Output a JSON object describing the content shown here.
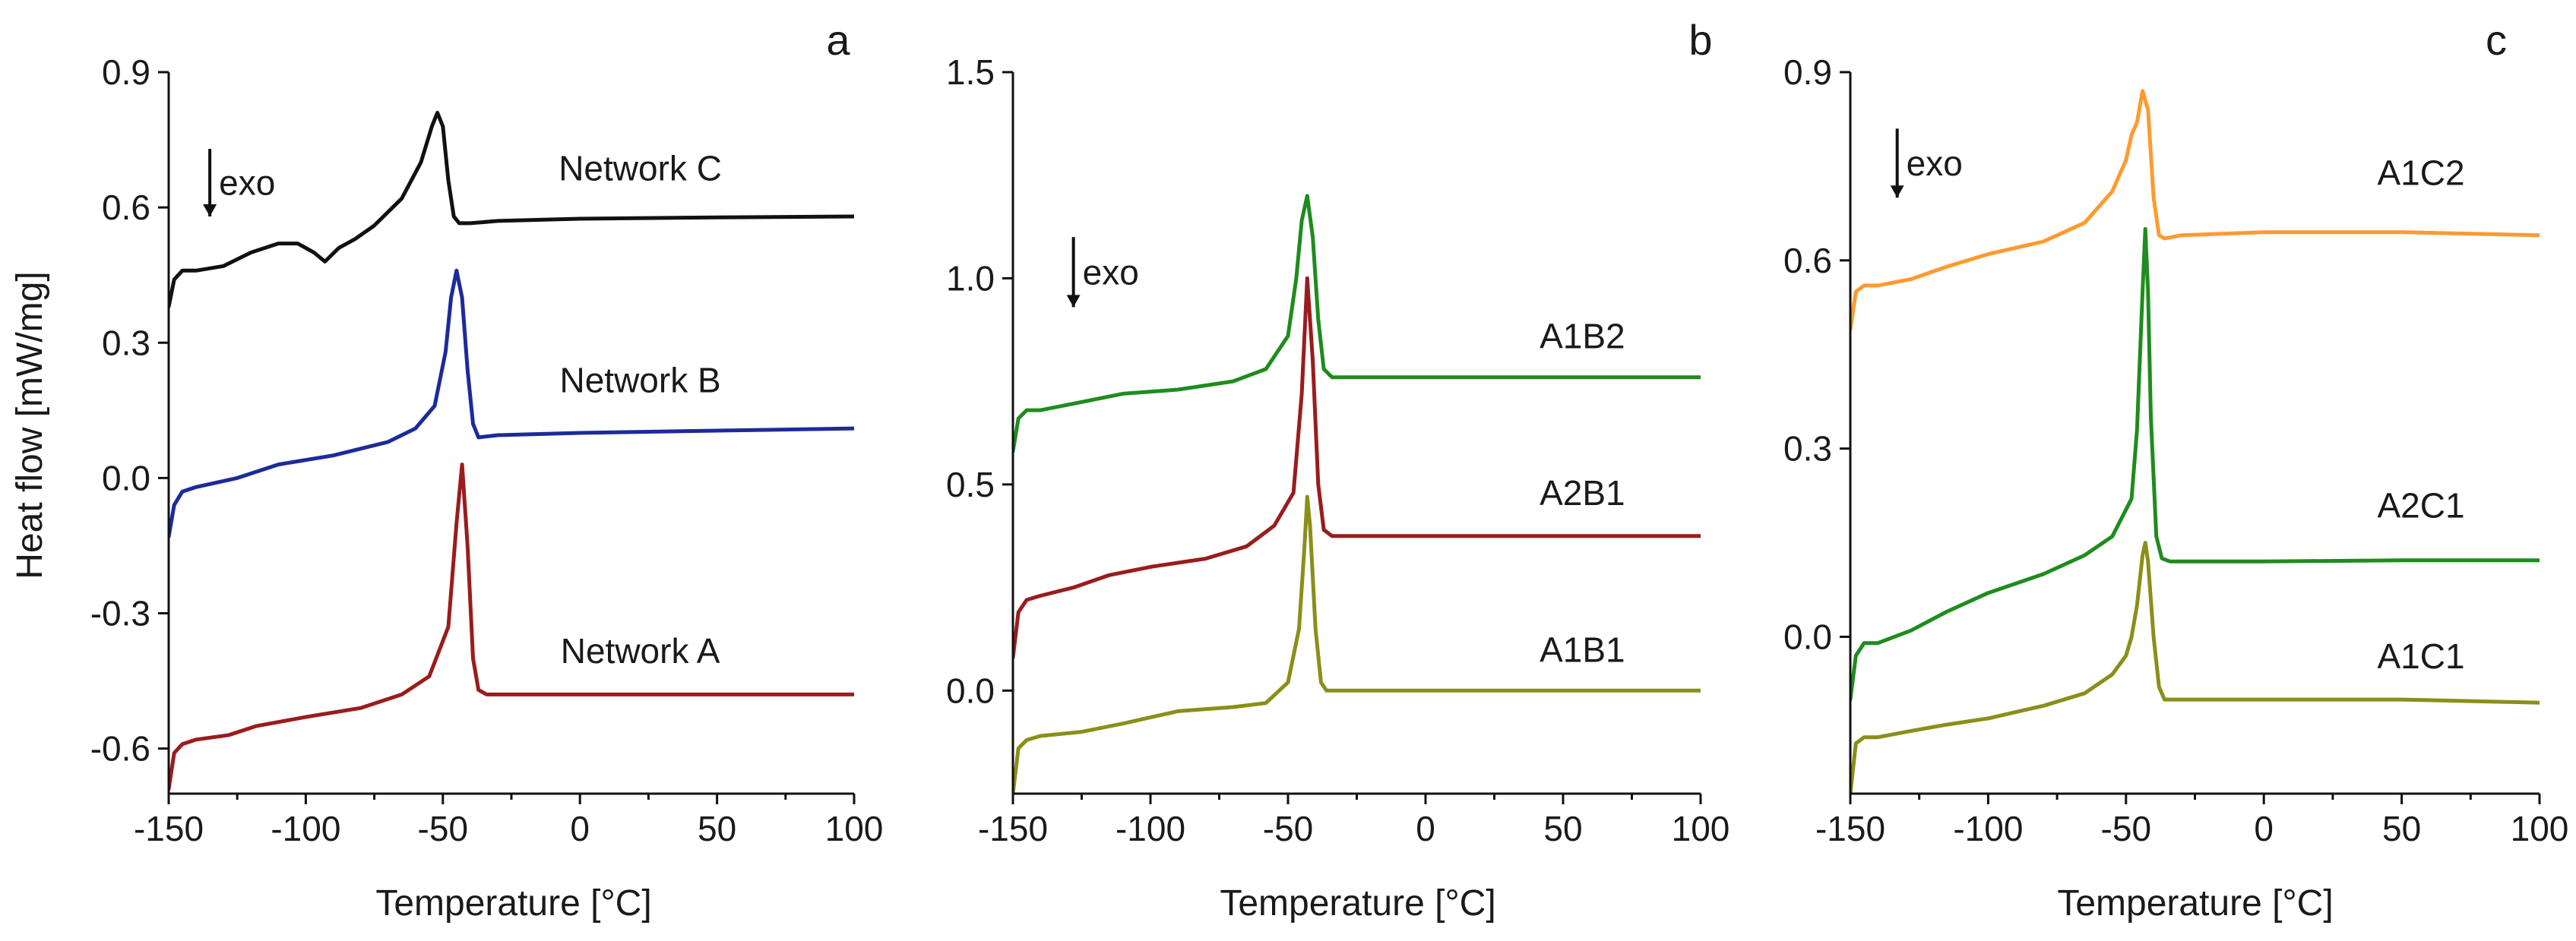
{
  "figure": {
    "y_axis_title": "Heat flow [mW/mg]",
    "x_axis_title": "Temperature [°C]"
  },
  "colors": {
    "black": "#111111",
    "blue": "#1c2a9c",
    "darkred": "#9a1c1c",
    "green": "#1e8c1e",
    "olive": "#8a8f18",
    "orange": "#ff9a2e"
  },
  "chart_data": [
    {
      "type": "line",
      "panel": "a",
      "exo_label": "exo",
      "xlabel": "Temperature [°C]",
      "ylabel": "Heat flow [mW/mg]",
      "xlim": [
        -150,
        100
      ],
      "ylim": [
        -0.7,
        0.9
      ],
      "xticks": [
        -150,
        -100,
        -50,
        0,
        50,
        100
      ],
      "xtick_labels": [
        "-150",
        "-100",
        "-50",
        "0",
        "50",
        "100"
      ],
      "yticks": [
        -0.6,
        -0.3,
        0.0,
        0.3,
        0.6,
        0.9
      ],
      "ytick_labels": [
        "-0.6",
        "-0.3",
        "0.0",
        "0.3",
        "0.6",
        "0.9"
      ],
      "series": [
        {
          "name": "Network C",
          "color": "black",
          "x": [
            -150,
            -148,
            -145,
            -140,
            -130,
            -120,
            -110,
            -103,
            -97,
            -93,
            -88,
            -82,
            -75,
            -65,
            -58,
            -54,
            -52,
            -50,
            -48,
            -46,
            -44,
            -40,
            -30,
            0,
            50,
            100
          ],
          "y": [
            0.38,
            0.44,
            0.46,
            0.46,
            0.47,
            0.5,
            0.52,
            0.52,
            0.5,
            0.48,
            0.51,
            0.53,
            0.56,
            0.62,
            0.7,
            0.78,
            0.81,
            0.78,
            0.66,
            0.58,
            0.565,
            0.565,
            0.57,
            0.575,
            0.578,
            0.58
          ]
        },
        {
          "name": "Network B",
          "color": "blue",
          "x": [
            -150,
            -148,
            -145,
            -140,
            -125,
            -110,
            -90,
            -70,
            -60,
            -53,
            -49,
            -47,
            -45,
            -43,
            -41,
            -39,
            -37,
            -30,
            0,
            50,
            100
          ],
          "y": [
            -0.13,
            -0.06,
            -0.03,
            -0.02,
            0.0,
            0.03,
            0.05,
            0.08,
            0.11,
            0.16,
            0.28,
            0.4,
            0.46,
            0.4,
            0.24,
            0.12,
            0.09,
            0.095,
            0.1,
            0.105,
            0.11
          ]
        },
        {
          "name": "Network A",
          "color": "darkred",
          "x": [
            -150,
            -148,
            -145,
            -140,
            -128,
            -118,
            -100,
            -80,
            -65,
            -55,
            -48,
            -45,
            -43,
            -41,
            -39,
            -37,
            -34,
            -30,
            0,
            50,
            100
          ],
          "y": [
            -0.69,
            -0.61,
            -0.59,
            -0.58,
            -0.57,
            -0.55,
            -0.53,
            -0.51,
            -0.48,
            -0.44,
            -0.33,
            -0.1,
            0.03,
            -0.15,
            -0.4,
            -0.47,
            -0.48,
            -0.48,
            -0.48,
            -0.48,
            -0.48
          ]
        }
      ],
      "curve_labels": [
        {
          "name": "Network C",
          "x": 22,
          "y": 0.66
        },
        {
          "name": "Network B",
          "x": 22,
          "y": 0.19
        },
        {
          "name": "Network A",
          "x": 22,
          "y": -0.41
        }
      ],
      "exo_arrow": {
        "x": -135,
        "y_top": 0.73,
        "y_bottom": 0.58
      }
    },
    {
      "type": "line",
      "panel": "b",
      "exo_label": "exo",
      "xlabel": "Temperature [°C]",
      "ylabel": "",
      "xlim": [
        -150,
        100
      ],
      "ylim": [
        -0.25,
        1.5
      ],
      "xticks": [
        -150,
        -100,
        -50,
        0,
        50,
        100
      ],
      "xtick_labels": [
        "-150",
        "-100",
        "-50",
        "0",
        "50",
        "100"
      ],
      "yticks": [
        0.0,
        0.5,
        1.0,
        1.5
      ],
      "ytick_labels": [
        "0.0",
        "0.5",
        "1.0",
        "1.5"
      ],
      "series": [
        {
          "name": "A1B2",
          "color": "green",
          "x": [
            -150,
            -148,
            -145,
            -140,
            -125,
            -110,
            -90,
            -70,
            -58,
            -50,
            -47,
            -45,
            -43,
            -41,
            -39,
            -37,
            -34,
            -30,
            0,
            50,
            100
          ],
          "y": [
            0.58,
            0.66,
            0.68,
            0.68,
            0.7,
            0.72,
            0.73,
            0.75,
            0.78,
            0.86,
            1.0,
            1.14,
            1.2,
            1.1,
            0.9,
            0.78,
            0.76,
            0.76,
            0.76,
            0.76,
            0.76
          ]
        },
        {
          "name": "A2B1",
          "color": "darkred",
          "x": [
            -150,
            -148,
            -145,
            -140,
            -128,
            -115,
            -100,
            -80,
            -65,
            -55,
            -48,
            -45,
            -43,
            -41,
            -39,
            -37,
            -34,
            -30,
            0,
            50,
            100
          ],
          "y": [
            0.08,
            0.19,
            0.22,
            0.23,
            0.25,
            0.28,
            0.3,
            0.32,
            0.35,
            0.4,
            0.48,
            0.72,
            1.0,
            0.8,
            0.5,
            0.39,
            0.375,
            0.375,
            0.375,
            0.375,
            0.375
          ]
        },
        {
          "name": "A1B1",
          "color": "olive",
          "x": [
            -150,
            -148,
            -145,
            -140,
            -125,
            -110,
            -90,
            -70,
            -58,
            -50,
            -46,
            -44,
            -43,
            -42,
            -40,
            -38,
            -36,
            -30,
            0,
            50,
            100
          ],
          "y": [
            -0.25,
            -0.14,
            -0.12,
            -0.11,
            -0.1,
            -0.08,
            -0.05,
            -0.04,
            -0.03,
            0.02,
            0.15,
            0.35,
            0.47,
            0.4,
            0.15,
            0.02,
            0.0,
            0.0,
            0.0,
            0.0,
            0.0
          ]
        }
      ],
      "curve_labels": [
        {
          "name": "A1B2",
          "x": 57,
          "y": 0.83
        },
        {
          "name": "A2B1",
          "x": 57,
          "y": 0.45
        },
        {
          "name": "A1B1",
          "x": 57,
          "y": 0.07
        }
      ],
      "exo_arrow": {
        "x": -128,
        "y_top": 1.1,
        "y_bottom": 0.93
      }
    },
    {
      "type": "line",
      "panel": "c",
      "exo_label": "exo",
      "xlabel": "Temperature [°C]",
      "ylabel": "",
      "xlim": [
        -150,
        100
      ],
      "ylim": [
        -0.25,
        0.9
      ],
      "xticks": [
        -150,
        -100,
        -50,
        0,
        50,
        100
      ],
      "xtick_labels": [
        "-150",
        "-100",
        "-50",
        "0",
        "50",
        "100"
      ],
      "yticks": [
        0.0,
        0.3,
        0.6,
        0.9
      ],
      "ytick_labels": [
        "0.0",
        "0.3",
        "0.6",
        "0.9"
      ],
      "series": [
        {
          "name": "A1C2",
          "color": "orange",
          "x": [
            -150,
            -148,
            -145,
            -140,
            -128,
            -115,
            -100,
            -80,
            -65,
            -55,
            -50,
            -48,
            -46,
            -44,
            -42,
            -40,
            -38,
            -36,
            -30,
            0,
            50,
            100
          ],
          "y": [
            0.49,
            0.55,
            0.56,
            0.56,
            0.57,
            0.59,
            0.61,
            0.63,
            0.66,
            0.71,
            0.76,
            0.8,
            0.82,
            0.87,
            0.84,
            0.7,
            0.64,
            0.635,
            0.64,
            0.645,
            0.645,
            0.64
          ]
        },
        {
          "name": "A2C1",
          "color": "green",
          "x": [
            -150,
            -148,
            -145,
            -140,
            -128,
            -115,
            -100,
            -80,
            -65,
            -55,
            -48,
            -46,
            -44,
            -43,
            -42,
            -41,
            -39,
            -37,
            -34,
            -30,
            0,
            50,
            100
          ],
          "y": [
            -0.1,
            -0.03,
            -0.01,
            -0.01,
            0.01,
            0.04,
            0.07,
            0.1,
            0.13,
            0.16,
            0.22,
            0.33,
            0.55,
            0.65,
            0.55,
            0.35,
            0.16,
            0.125,
            0.12,
            0.12,
            0.12,
            0.122,
            0.122
          ]
        },
        {
          "name": "A1C1",
          "color": "olive",
          "x": [
            -150,
            -148,
            -145,
            -140,
            -128,
            -115,
            -100,
            -80,
            -65,
            -55,
            -50,
            -48,
            -46,
            -44,
            -43,
            -42,
            -40,
            -38,
            -36,
            -30,
            0,
            50,
            100
          ],
          "y": [
            -0.25,
            -0.17,
            -0.16,
            -0.16,
            -0.15,
            -0.14,
            -0.13,
            -0.11,
            -0.09,
            -0.06,
            -0.03,
            0.0,
            0.05,
            0.13,
            0.15,
            0.12,
            0.0,
            -0.08,
            -0.1,
            -0.1,
            -0.1,
            -0.1,
            -0.105
          ]
        }
      ],
      "curve_labels": [
        {
          "name": "A1C2",
          "x": 57,
          "y": 0.72
        },
        {
          "name": "A2C1",
          "x": 57,
          "y": 0.19
        },
        {
          "name": "A1C1",
          "x": 57,
          "y": -0.05
        }
      ],
      "exo_arrow": {
        "x": -133,
        "y_top": 0.81,
        "y_bottom": 0.7
      }
    }
  ]
}
